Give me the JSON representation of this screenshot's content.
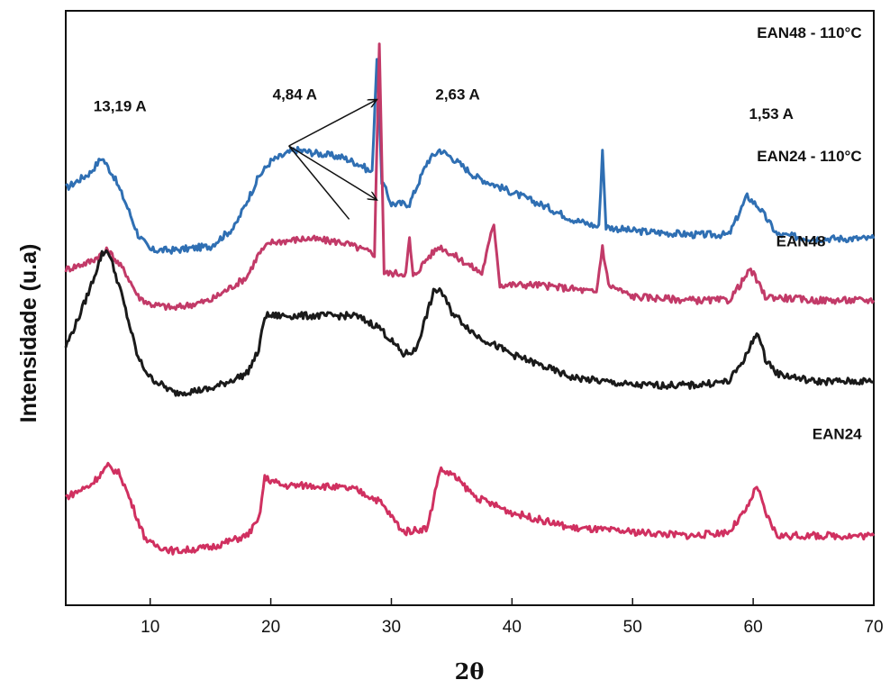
{
  "chart_data": {
    "type": "line",
    "xlabel": "2θ",
    "ylabel": "Intensidade (u.a)",
    "xlim": [
      3,
      70
    ],
    "x_ticks": [
      10,
      20,
      30,
      40,
      50,
      60,
      70
    ],
    "y_ticks_shown": false,
    "grid": false,
    "legend": "none; series names written beside each curve",
    "series": [
      {
        "name": "EAN48 - 110°C",
        "color": "#2f6fb3",
        "x": [
          3,
          5,
          6,
          7,
          8,
          9,
          10,
          12,
          15,
          17,
          19,
          20,
          22,
          24,
          26,
          27.5,
          28.4,
          28.8,
          29.2,
          30,
          31.5,
          33,
          34,
          35,
          37,
          40,
          43,
          45,
          47.2,
          47.5,
          47.8,
          50,
          55,
          58,
          59.5,
          60.5,
          62,
          65,
          70
        ],
        "y": [
          2.4,
          2.6,
          2.8,
          2.55,
          2.2,
          1.8,
          1.6,
          1.6,
          1.65,
          1.9,
          2.55,
          2.75,
          2.9,
          2.85,
          2.8,
          2.7,
          2.6,
          4.1,
          2.5,
          2.2,
          2.2,
          2.75,
          2.9,
          2.8,
          2.55,
          2.35,
          2.15,
          2.0,
          1.9,
          2.9,
          1.9,
          1.85,
          1.8,
          1.8,
          2.3,
          2.15,
          1.8,
          1.75,
          1.75
        ]
      },
      {
        "name": "EAN24 - 110°C",
        "color": "#c23a68",
        "x": [
          3,
          5,
          6.5,
          8,
          9,
          10,
          12,
          15,
          18,
          19,
          20,
          23,
          26,
          28.6,
          29.0,
          29.4,
          31.2,
          31.5,
          31.8,
          33,
          34,
          35,
          37.5,
          38.5,
          39,
          42,
          45,
          47,
          47.5,
          48,
          50,
          55,
          58,
          59.8,
          61,
          65,
          70
        ],
        "y": [
          1.35,
          1.45,
          1.6,
          1.3,
          1.0,
          0.9,
          0.85,
          0.95,
          1.25,
          1.55,
          1.7,
          1.75,
          1.7,
          1.55,
          4.3,
          1.3,
          1.3,
          1.75,
          1.25,
          1.5,
          1.65,
          1.55,
          1.3,
          1.95,
          1.15,
          1.15,
          1.1,
          1.05,
          1.65,
          1.15,
          1.0,
          0.95,
          0.95,
          1.35,
          1.0,
          0.95,
          0.95
        ]
      },
      {
        "name": "EAN48",
        "color": "#1a1a1a",
        "x": [
          3,
          4,
          5,
          6,
          6.5,
          7.5,
          9,
          10,
          12,
          15,
          18,
          19,
          19.5,
          21,
          24,
          27,
          29,
          31,
          32,
          33.5,
          34,
          35,
          37,
          40,
          45,
          50,
          55,
          58,
          59.5,
          60.3,
          61,
          62,
          65,
          70
        ],
        "y": [
          0.35,
          0.7,
          1.1,
          1.55,
          1.6,
          1.1,
          0.2,
          -0.05,
          -0.25,
          -0.2,
          0.0,
          0.3,
          0.75,
          0.75,
          0.75,
          0.75,
          0.6,
          0.25,
          0.3,
          1.05,
          1.1,
          0.8,
          0.5,
          0.25,
          -0.05,
          -0.15,
          -0.15,
          -0.1,
          0.25,
          0.55,
          0.2,
          0.0,
          -0.1,
          -0.1
        ]
      },
      {
        "name": "EAN24",
        "color": "#d03060",
        "x": [
          3,
          5,
          6.5,
          7.5,
          8.5,
          9.5,
          10,
          12,
          15,
          18,
          19,
          19.5,
          21,
          24,
          27,
          29,
          31,
          33,
          34,
          35,
          37,
          40,
          45,
          50,
          55,
          58,
          59.5,
          60.3,
          61,
          62,
          65,
          70
        ],
        "y": [
          -1.6,
          -1.45,
          -1.2,
          -1.3,
          -1.7,
          -2.1,
          -2.2,
          -2.3,
          -2.25,
          -2.1,
          -1.9,
          -1.35,
          -1.45,
          -1.45,
          -1.5,
          -1.65,
          -2.05,
          -2.0,
          -1.25,
          -1.3,
          -1.6,
          -1.8,
          -2.0,
          -2.05,
          -2.1,
          -2.05,
          -1.75,
          -1.45,
          -1.8,
          -2.1,
          -2.1,
          -2.1
        ]
      }
    ],
    "annotations": [
      {
        "text": "13,19 A",
        "x": 7.5,
        "y": 3.4
      },
      {
        "text": "4,84 A",
        "x": 22,
        "y": 3.55
      },
      {
        "text": "2,63 A",
        "x": 35.5,
        "y": 3.55
      },
      {
        "text": "1,53 A",
        "x": 61.5,
        "y": 3.3
      }
    ],
    "arrows": [
      {
        "from": [
          26.5,
          2.0
        ],
        "to": [
          21.5,
          2.95
        ]
      },
      {
        "from": [
          21.5,
          2.95
        ],
        "to": [
          28.8,
          3.55
        ]
      },
      {
        "from": [
          21.5,
          2.95
        ],
        "to": [
          28.8,
          2.25
        ]
      }
    ]
  }
}
